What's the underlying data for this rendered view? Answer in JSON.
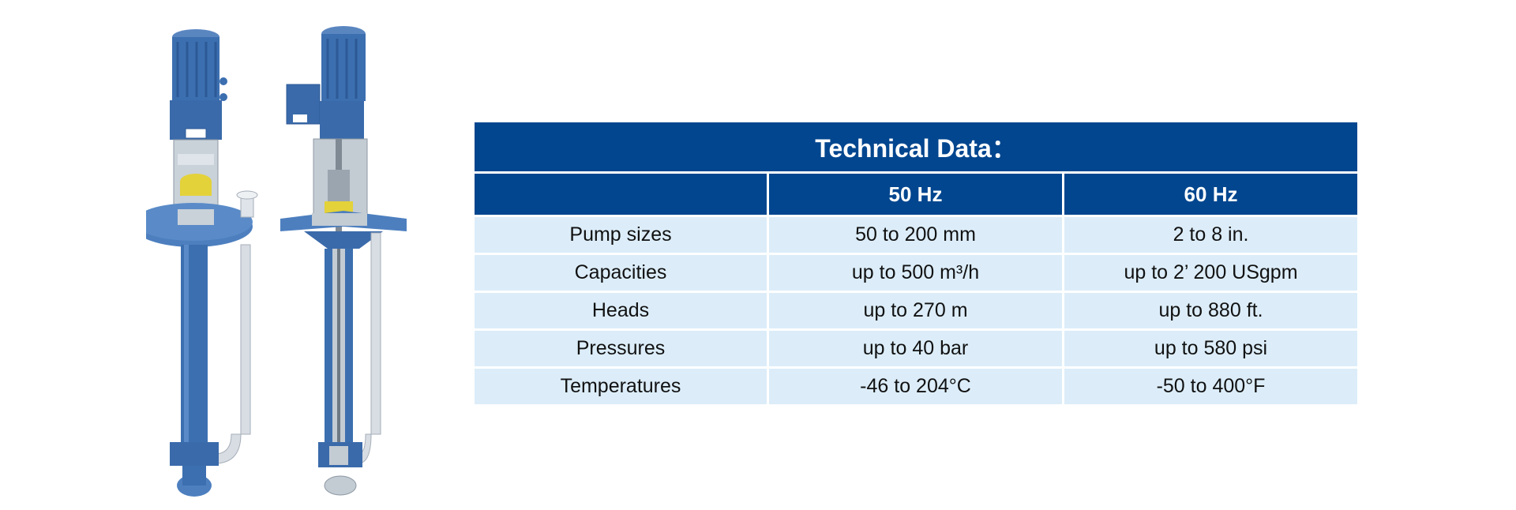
{
  "colors": {
    "header_bg": "#02468f",
    "header_text": "#ffffff",
    "row_bg": "#dcedf9",
    "pump_blue": "#3c6fb0",
    "steel": "#c3cbd3",
    "coupling": "#e3d23a"
  },
  "illustration": {
    "icon": "vertical-pump-illustration"
  },
  "table": {
    "title": "Technical Data：",
    "columns": [
      "",
      "50 Hz",
      "60 Hz"
    ],
    "rows": [
      {
        "label": "Pump sizes",
        "hz50": "50 to 200 mm",
        "hz60": "2 to 8 in."
      },
      {
        "label": "Capacities",
        "hz50": "up to 500 m³/h",
        "hz60": "up to 2’ 200 USgpm"
      },
      {
        "label": "Heads",
        "hz50": "up to 270 m",
        "hz60": "up to 880 ft."
      },
      {
        "label": "Pressures",
        "hz50": "up to 40 bar",
        "hz60": "up to 580 psi"
      },
      {
        "label": "Temperatures",
        "hz50": "-46 to 204°C",
        "hz60": "-50 to 400°F"
      }
    ]
  }
}
